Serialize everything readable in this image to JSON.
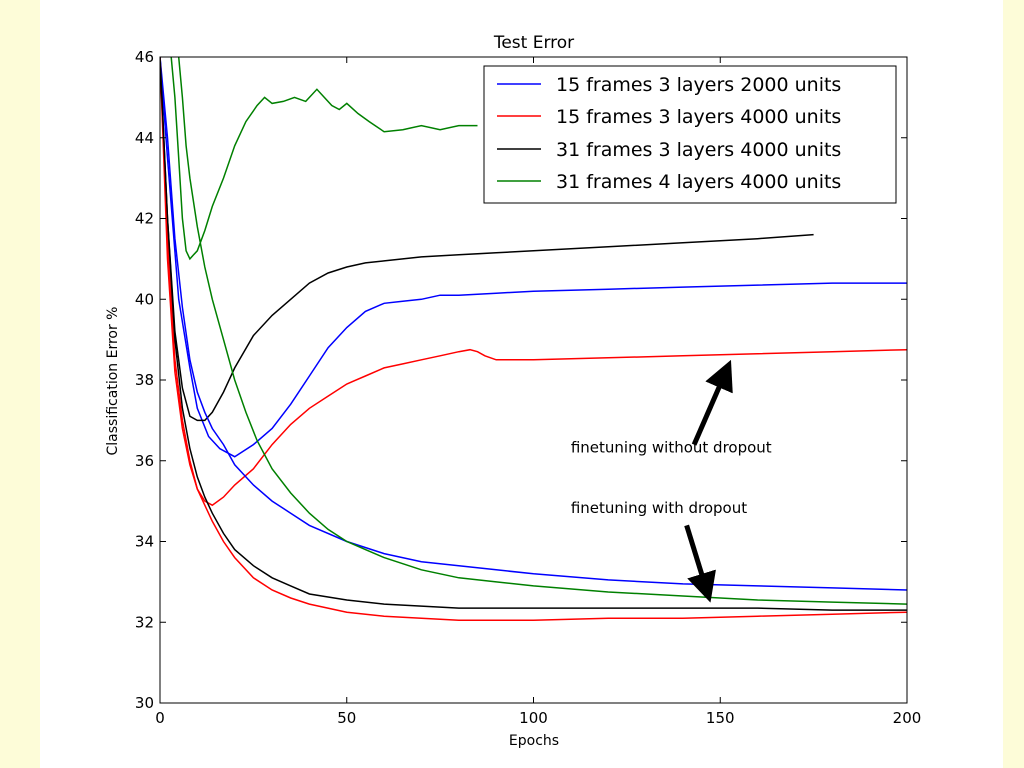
{
  "chart_data": {
    "type": "line",
    "title": "Test Error",
    "xlabel": "Epochs",
    "ylabel": "Classification Error %",
    "xlim": [
      0,
      200
    ],
    "ylim": [
      30,
      46
    ],
    "x_ticks": [
      0,
      50,
      100,
      150,
      200
    ],
    "y_ticks": [
      30,
      32,
      34,
      36,
      38,
      40,
      42,
      44,
      46
    ],
    "grid": false,
    "legend_position": "top-right",
    "series": [
      {
        "name": "15 frames 3 layers 2000 units",
        "group": "without dropout",
        "color": "#0000ff",
        "x": [
          0,
          2,
          5,
          8,
          10,
          13,
          16,
          20,
          25,
          30,
          35,
          40,
          45,
          50,
          55,
          60,
          65,
          70,
          75,
          80,
          90,
          100,
          120,
          140,
          160,
          180,
          200
        ],
        "y": [
          46,
          43.5,
          40,
          38.3,
          37.3,
          36.6,
          36.3,
          36.1,
          36.4,
          36.8,
          37.4,
          38.1,
          38.8,
          39.3,
          39.7,
          39.9,
          39.95,
          40.0,
          40.1,
          40.1,
          40.15,
          40.2,
          40.25,
          40.3,
          40.35,
          40.4,
          40.4
        ]
      },
      {
        "name": "15 frames 3 layers 4000 units",
        "group": "without dropout",
        "color": "#ff0000",
        "x": [
          0,
          2,
          4,
          6,
          8,
          10,
          12,
          14,
          17,
          20,
          25,
          30,
          35,
          40,
          45,
          50,
          55,
          60,
          65,
          70,
          75,
          80,
          83,
          85,
          87,
          90,
          100,
          120,
          140,
          160,
          180,
          200
        ],
        "y": [
          46,
          41,
          38.2,
          36.8,
          35.9,
          35.3,
          35.0,
          34.9,
          35.1,
          35.4,
          35.8,
          36.4,
          36.9,
          37.3,
          37.6,
          37.9,
          38.1,
          38.3,
          38.4,
          38.5,
          38.6,
          38.7,
          38.75,
          38.7,
          38.6,
          38.5,
          38.5,
          38.55,
          38.6,
          38.65,
          38.7,
          38.75
        ]
      },
      {
        "name": "31 frames 3 layers 4000 units",
        "group": "without dropout",
        "color": "#000000",
        "x": [
          0,
          2,
          4,
          6,
          8,
          10,
          12,
          14,
          17,
          20,
          25,
          30,
          35,
          40,
          45,
          50,
          55,
          60,
          65,
          70,
          80,
          90,
          100,
          120,
          140,
          160,
          175
        ],
        "y": [
          46,
          42,
          39.2,
          37.8,
          37.1,
          37.0,
          37.0,
          37.2,
          37.7,
          38.3,
          39.1,
          39.6,
          40.0,
          40.4,
          40.65,
          40.8,
          40.9,
          40.95,
          41.0,
          41.05,
          41.1,
          41.15,
          41.2,
          41.3,
          41.4,
          41.5,
          41.6
        ]
      },
      {
        "name": "31 frames 4 layers 4000 units",
        "group": "without dropout",
        "color": "#008000",
        "x": [
          3,
          4,
          5,
          6,
          7,
          8,
          9,
          10,
          12,
          14,
          17,
          20,
          23,
          26,
          28,
          30,
          33,
          36,
          39,
          42,
          44,
          46,
          48,
          50,
          53,
          56,
          60,
          65,
          70,
          75,
          80,
          85
        ],
        "y": [
          46,
          45,
          43.5,
          42,
          41.2,
          41.0,
          41.1,
          41.2,
          41.7,
          42.3,
          43.0,
          43.8,
          44.4,
          44.8,
          45.0,
          44.85,
          44.9,
          45.0,
          44.9,
          45.2,
          45.0,
          44.8,
          44.7,
          44.85,
          44.6,
          44.4,
          44.15,
          44.2,
          44.3,
          44.2,
          44.3,
          44.3
        ]
      },
      {
        "name": "15 frames 3 layers 2000 units (dropout)",
        "group": "with dropout",
        "color": "#0000ff",
        "x": [
          0,
          2,
          4,
          6,
          8,
          10,
          12,
          14,
          17,
          20,
          25,
          30,
          35,
          40,
          50,
          60,
          70,
          80,
          90,
          100,
          120,
          140,
          160,
          180,
          200
        ],
        "y": [
          46,
          44,
          41.5,
          39.8,
          38.5,
          37.7,
          37.2,
          36.8,
          36.4,
          35.9,
          35.4,
          35.0,
          34.7,
          34.4,
          34.0,
          33.7,
          33.5,
          33.4,
          33.3,
          33.2,
          33.05,
          32.95,
          32.9,
          32.85,
          32.8
        ]
      },
      {
        "name": "15 frames 3 layers 4000 units (dropout)",
        "group": "with dropout",
        "color": "#ff0000",
        "x": [
          0,
          2,
          4,
          6,
          8,
          10,
          12,
          14,
          17,
          20,
          25,
          30,
          35,
          40,
          50,
          60,
          70,
          80,
          90,
          100,
          120,
          140,
          160,
          180,
          200
        ],
        "y": [
          46,
          41.5,
          38.5,
          37.0,
          36.0,
          35.3,
          34.9,
          34.5,
          34.0,
          33.6,
          33.1,
          32.8,
          32.6,
          32.45,
          32.25,
          32.15,
          32.1,
          32.05,
          32.05,
          32.05,
          32.1,
          32.1,
          32.15,
          32.2,
          32.25
        ]
      },
      {
        "name": "31 frames 3 layers 4000 units (dropout)",
        "group": "with dropout",
        "color": "#000000",
        "x": [
          0,
          2,
          4,
          6,
          8,
          10,
          12,
          14,
          17,
          20,
          25,
          30,
          35,
          40,
          50,
          60,
          70,
          80,
          90,
          100,
          120,
          140,
          160,
          180,
          200
        ],
        "y": [
          46,
          42,
          39,
          37.3,
          36.3,
          35.6,
          35.1,
          34.7,
          34.2,
          33.8,
          33.4,
          33.1,
          32.9,
          32.7,
          32.55,
          32.45,
          32.4,
          32.35,
          32.35,
          32.35,
          32.35,
          32.35,
          32.35,
          32.3,
          32.3
        ]
      },
      {
        "name": "31 frames 4 layers 4000 units (dropout)",
        "group": "with dropout",
        "color": "#008000",
        "x": [
          5,
          6,
          7,
          8,
          10,
          12,
          14,
          17,
          20,
          23,
          26,
          30,
          35,
          40,
          45,
          50,
          55,
          60,
          70,
          80,
          90,
          100,
          120,
          140,
          160,
          180,
          200
        ],
        "y": [
          46,
          45,
          43.8,
          43.0,
          41.8,
          40.8,
          40.0,
          39.0,
          38.0,
          37.2,
          36.5,
          35.8,
          35.2,
          34.7,
          34.3,
          34.0,
          33.8,
          33.6,
          33.3,
          33.1,
          33.0,
          32.9,
          32.75,
          32.65,
          32.55,
          32.5,
          32.45
        ]
      }
    ],
    "annotations": [
      {
        "text": "finetuning without dropout",
        "label_x": 110,
        "label_y": 36.2,
        "arrow_from": [
          143,
          36.4
        ],
        "arrow_to": [
          151,
          38.1
        ]
      },
      {
        "text": "finetuning with dropout",
        "label_x": 110,
        "label_y": 34.7,
        "arrow_from": [
          141,
          34.4
        ],
        "arrow_to": [
          146,
          32.9
        ]
      }
    ]
  }
}
